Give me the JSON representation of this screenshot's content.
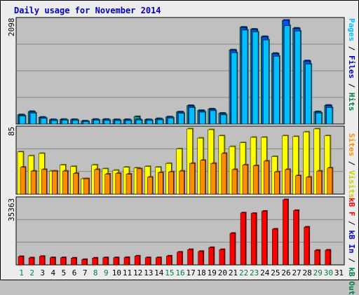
{
  "title": "Daily usage for November 2014",
  "colors": {
    "pages": "#00bfff",
    "files": "#0050ff",
    "hits": "#00a080",
    "visits": "#ffff00",
    "sites": "#ff8c00",
    "kbin": "#0000c0",
    "kbout": "#008040",
    "kbf": "#ff0000",
    "weekend": "#008040",
    "weekday": "#000000"
  },
  "chart_data": [
    {
      "type": "bar",
      "panel": "top",
      "ymax_label": "2098",
      "ylim": [
        0,
        2098
      ],
      "right_labels": [
        {
          "text": "Pages",
          "color": "#00bfff"
        },
        {
          "text": " / ",
          "color": "#000000"
        },
        {
          "text": "Files",
          "color": "#0000c0"
        },
        {
          "text": " / ",
          "color": "#000000"
        },
        {
          "text": "Hits",
          "color": "#008040"
        }
      ],
      "categories": [
        "1",
        "2",
        "3",
        "4",
        "5",
        "6",
        "7",
        "8",
        "9",
        "10",
        "11",
        "12",
        "13",
        "14",
        "15",
        "16",
        "17",
        "18",
        "19",
        "20",
        "21",
        "22",
        "23",
        "24",
        "25",
        "26",
        "27",
        "28",
        "29",
        "30",
        "31"
      ],
      "series": [
        {
          "key": "hits",
          "values": [
            188,
            254,
            138,
            90,
            95,
            92,
            62,
            95,
            95,
            90,
            92,
            150,
            90,
            110,
            145,
            245,
            375,
            275,
            305,
            220,
            1500,
            1960,
            1920,
            1770,
            1430,
            2098,
            1940,
            1280,
            250,
            380,
            0
          ]
        },
        {
          "key": "files",
          "values": [
            180,
            240,
            130,
            85,
            88,
            85,
            58,
            88,
            88,
            85,
            85,
            92,
            85,
            100,
            140,
            240,
            365,
            265,
            295,
            210,
            1490,
            1950,
            1910,
            1760,
            1420,
            2098,
            1930,
            1270,
            240,
            370,
            0
          ]
        },
        {
          "key": "pages",
          "values": [
            160,
            220,
            115,
            70,
            75,
            72,
            45,
            75,
            72,
            70,
            70,
            78,
            72,
            85,
            120,
            215,
            330,
            240,
            270,
            185,
            1440,
            1900,
            1860,
            1700,
            1370,
            1990,
            1880,
            1210,
            220,
            330,
            0
          ]
        }
      ]
    },
    {
      "type": "bar",
      "panel": "middle",
      "ymax_label": "85",
      "ylim": [
        0,
        85
      ],
      "right_labels": [
        {
          "text": "Sites",
          "color": "#ff8c00"
        },
        {
          "text": " / ",
          "color": "#000000"
        },
        {
          "text": "Visits",
          "color": "#cccc00"
        }
      ],
      "categories": [
        "1",
        "2",
        "3",
        "4",
        "5",
        "6",
        "7",
        "8",
        "9",
        "10",
        "11",
        "12",
        "13",
        "14",
        "15",
        "16",
        "17",
        "18",
        "19",
        "20",
        "21",
        "22",
        "23",
        "24",
        "25",
        "26",
        "27",
        "28",
        "29",
        "30",
        "31"
      ],
      "series": [
        {
          "key": "visits",
          "values": [
            55,
            50,
            53,
            30,
            38,
            36,
            20,
            38,
            33,
            31,
            35,
            34,
            36,
            35,
            40,
            59,
            85,
            73,
            84,
            76,
            62,
            67,
            74,
            74,
            49,
            76,
            75,
            81,
            85,
            76,
            0
          ]
        },
        {
          "key": "sites",
          "values": [
            35,
            30,
            32,
            30,
            30,
            27,
            20,
            32,
            26,
            27,
            26,
            33,
            22,
            28,
            29,
            30,
            40,
            44,
            40,
            53,
            32,
            38,
            37,
            43,
            29,
            32,
            24,
            22,
            30,
            34,
            0
          ]
        }
      ]
    },
    {
      "type": "bar",
      "panel": "bottom",
      "ymax_label": "35363",
      "ylim": [
        0,
        35363
      ],
      "right_labels": [
        {
          "text": "kB F",
          "color": "#ff0000"
        },
        {
          "text": " / ",
          "color": "#000000"
        },
        {
          "text": "kB In",
          "color": "#0000c0"
        },
        {
          "text": " / ",
          "color": "#000000"
        },
        {
          "text": "kB Out",
          "color": "#008040"
        }
      ],
      "categories": [
        "1",
        "2",
        "3",
        "4",
        "5",
        "6",
        "7",
        "8",
        "9",
        "10",
        "11",
        "12",
        "13",
        "14",
        "15",
        "16",
        "17",
        "18",
        "19",
        "20",
        "21",
        "22",
        "23",
        "24",
        "25",
        "26",
        "27",
        "28",
        "29",
        "30",
        "31"
      ],
      "series": [
        {
          "key": "kbf",
          "values": [
            4500,
            3800,
            4600,
            3900,
            3900,
            3700,
            2900,
            3700,
            3900,
            3900,
            4000,
            4800,
            3900,
            3900,
            4800,
            6900,
            8300,
            7300,
            9400,
            8300,
            17100,
            28200,
            27900,
            29100,
            19400,
            35363,
            29500,
            20500,
            7900,
            8000,
            0
          ]
        }
      ]
    }
  ],
  "day_labels": {
    "values": [
      "1",
      "2",
      "3",
      "4",
      "5",
      "6",
      "7",
      "8",
      "9",
      "10",
      "11",
      "12",
      "13",
      "14",
      "15",
      "16",
      "17",
      "18",
      "19",
      "20",
      "21",
      "22",
      "23",
      "24",
      "25",
      "26",
      "27",
      "28",
      "29",
      "30",
      "31"
    ],
    "weekend": [
      "1",
      "2",
      "8",
      "9",
      "15",
      "16",
      "22",
      "23",
      "29",
      "30"
    ]
  }
}
